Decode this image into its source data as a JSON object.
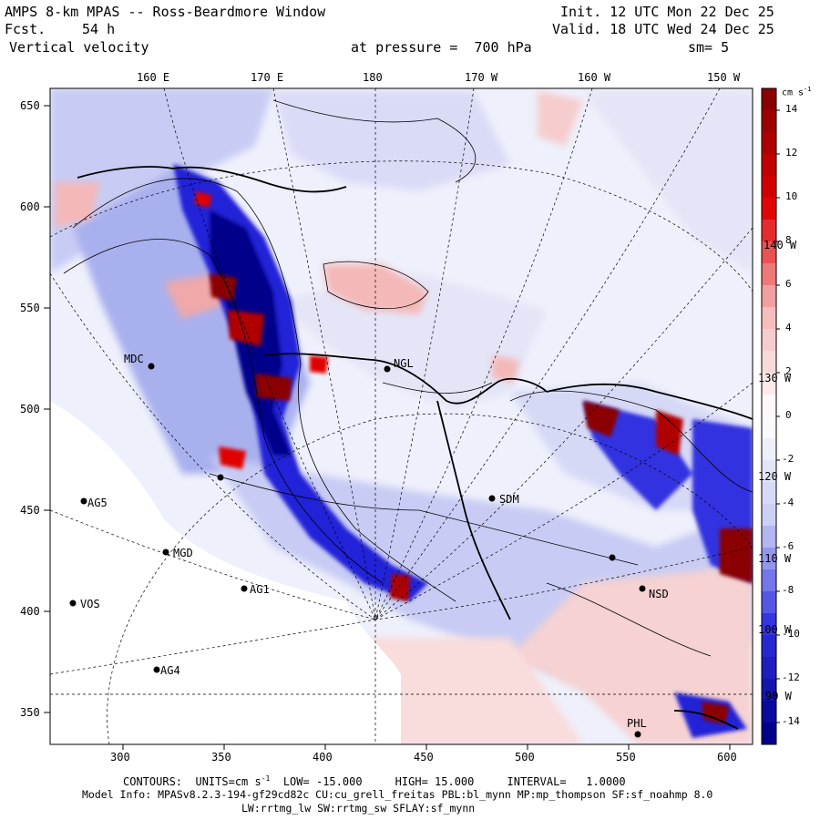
{
  "header": {
    "title": "AMPS 8-km MPAS -- Ross-Beardmore Window",
    "fcst_label": "Fcst.",
    "fcst_value": "54 h",
    "field": "Vertical velocity",
    "init": "Init. 12 UTC Mon 22 Dec 25",
    "valid": "Valid. 18 UTC Wed 24 Dec 25",
    "pressure": "at pressure =  700 hPa",
    "smoothing": "sm= 5"
  },
  "axes": {
    "top_lon_labels": [
      "160 E",
      "170 E",
      "180",
      "170 W",
      "160 W",
      "150 W"
    ],
    "left_y_labels": [
      "650",
      "600",
      "550",
      "500",
      "450",
      "400",
      "350"
    ],
    "bottom_x_labels": [
      "300",
      "350",
      "400",
      "450",
      "500",
      "550",
      "600"
    ],
    "inner_lon_labels": [
      "140 W",
      "130 W",
      "120 W",
      "110 W",
      "100 W",
      "90 W"
    ]
  },
  "colorbar": {
    "unit": "cm s",
    "unit_exp": "-1",
    "labels": [
      "14",
      "12",
      "10",
      "8",
      "6",
      "4",
      "2",
      "0",
      "-2",
      "-4",
      "-6",
      "-8",
      "-10",
      "-12",
      "-14"
    ],
    "colors": {
      "dark_red": "#8b0000",
      "red": "#e00000",
      "light_red": "#f4b8b8",
      "white": "#ffffff",
      "light_blue": "#c8ccf4",
      "blue": "#3030e0",
      "dark_blue": "#00008b"
    }
  },
  "stations": [
    {
      "name": "MDC"
    },
    {
      "name": "NGL"
    },
    {
      "name": "AG5"
    },
    {
      "name": "MGD"
    },
    {
      "name": "AG1"
    },
    {
      "name": "VOS"
    },
    {
      "name": "AG4"
    },
    {
      "name": "SDM"
    },
    {
      "name": "NSD"
    },
    {
      "name": "PHL"
    }
  ],
  "footer": {
    "contours_label": "CONTOURS:",
    "units_label": "UNITS=cm s",
    "units_exp": "-1",
    "low_label": "LOW=",
    "low_value": "-15.000",
    "high_label": "HIGH=",
    "high_value": "15.000",
    "interval_label": "INTERVAL=",
    "interval_value": "1.0000",
    "model_info": "Model Info: MPASv8.2.3-194-gf29cd82c CU:cu_grell_freitas PBL:bl_mynn MP:mp_thompson SF:sf_noahmp 8.0",
    "model_info2": "LW:rrtmg_lw SW:rrtmg_sw SFLAY:sf_mynn"
  }
}
